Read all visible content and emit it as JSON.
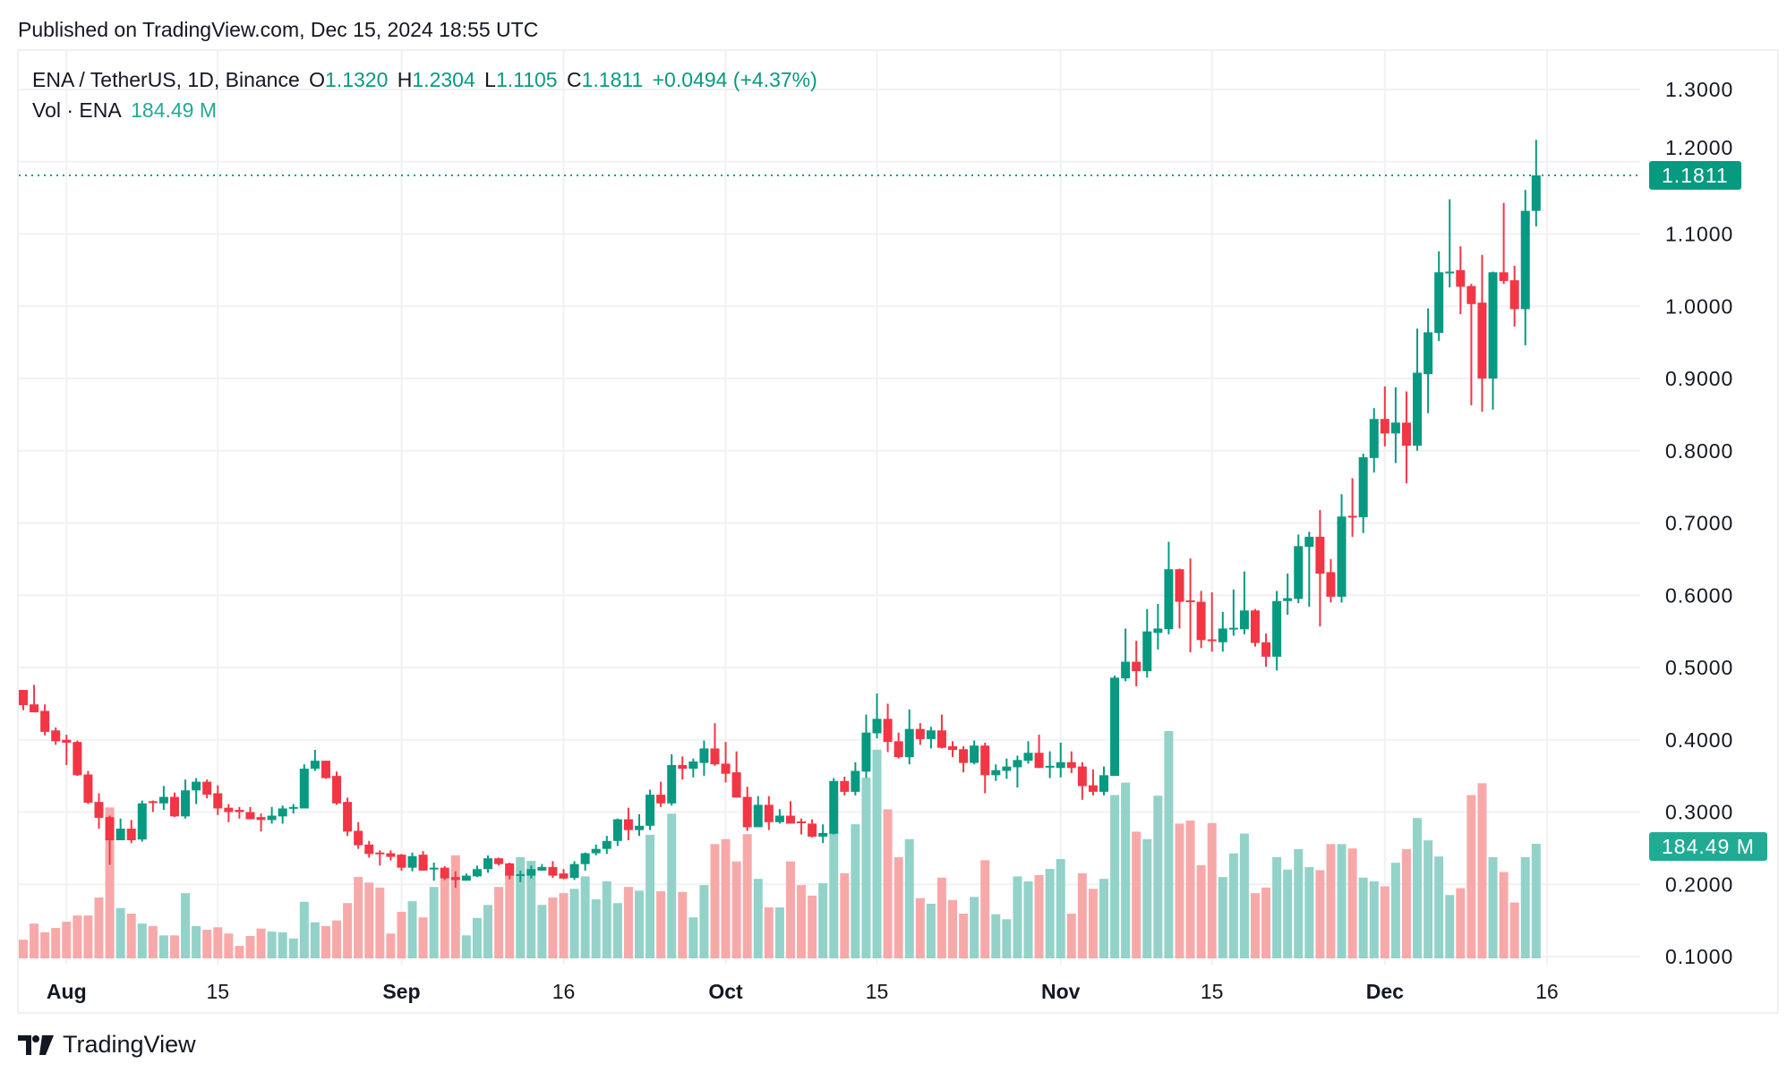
{
  "published": "Published on TradingView.com, Dec 15, 2024 18:55 UTC",
  "legend": {
    "symbol": "ENA / TetherUS, 1D, Binance",
    "o_label": "O",
    "o": "1.1320",
    "h_label": "H",
    "h": "1.2304",
    "l_label": "L",
    "l": "1.1105",
    "c_label": "C",
    "c": "1.1811",
    "change": "+0.0494 (+4.37%)",
    "vol_label": "Vol · ENA",
    "vol": "184.49 M"
  },
  "last_price_tag": "1.1811",
  "volume_tag": "184.49 M",
  "brand": "TradingView",
  "colors": {
    "up": "#089981",
    "down": "#F23645",
    "vol_up": "#93d2c9",
    "vol_down": "#f7a9a9",
    "grid": "#f0f1f3"
  },
  "chart_data": {
    "type": "candlestick",
    "title": "",
    "y_axis": {
      "position": "right",
      "range": [
        0.1,
        1.3
      ],
      "ticks": [
        "1.3000",
        "1.2000",
        "1.1000",
        "1.0000",
        "0.9000",
        "0.8000",
        "0.7000",
        "0.6000",
        "0.5000",
        "0.4000",
        "0.3000",
        "0.2000",
        "0.1000"
      ]
    },
    "x_axis": {
      "tick_labels": [
        {
          "date": "2024-08-01",
          "label": "Aug",
          "bold": true
        },
        {
          "date": "2024-08-15",
          "label": "15",
          "bold": false
        },
        {
          "date": "2024-09-01",
          "label": "Sep",
          "bold": true
        },
        {
          "date": "2024-09-16",
          "label": "16",
          "bold": false
        },
        {
          "date": "2024-10-01",
          "label": "Oct",
          "bold": true
        },
        {
          "date": "2024-10-15",
          "label": "15",
          "bold": false
        },
        {
          "date": "2024-11-01",
          "label": "Nov",
          "bold": true
        },
        {
          "date": "2024-11-15",
          "label": "15",
          "bold": false
        },
        {
          "date": "2024-12-01",
          "label": "Dec",
          "bold": true
        },
        {
          "date": "2024-12-16",
          "label": "16",
          "bold": false
        }
      ]
    },
    "grid": true,
    "volume_unit": "M",
    "columns": [
      "date",
      "open",
      "high",
      "low",
      "close",
      "volume"
    ],
    "candles": [
      [
        "2024-07-28",
        0.469,
        0.469,
        0.441,
        0.448,
        30
      ],
      [
        "2024-07-29",
        0.449,
        0.476,
        0.438,
        0.438,
        56
      ],
      [
        "2024-07-30",
        0.44,
        0.449,
        0.406,
        0.411,
        42
      ],
      [
        "2024-07-31",
        0.413,
        0.417,
        0.393,
        0.398,
        49
      ],
      [
        "2024-08-01",
        0.4,
        0.407,
        0.365,
        0.396,
        59
      ],
      [
        "2024-08-02",
        0.397,
        0.399,
        0.35,
        0.351,
        69
      ],
      [
        "2024-08-03",
        0.352,
        0.357,
        0.311,
        0.313,
        69
      ],
      [
        "2024-08-04",
        0.314,
        0.326,
        0.277,
        0.292,
        98
      ],
      [
        "2024-08-05",
        0.293,
        0.295,
        0.227,
        0.261,
        243
      ],
      [
        "2024-08-06",
        0.261,
        0.291,
        0.261,
        0.277,
        81
      ],
      [
        "2024-08-07",
        0.277,
        0.289,
        0.257,
        0.261,
        72
      ],
      [
        "2024-08-08",
        0.262,
        0.316,
        0.259,
        0.312,
        56
      ],
      [
        "2024-08-09",
        0.315,
        0.316,
        0.3,
        0.313,
        52
      ],
      [
        "2024-08-10",
        0.312,
        0.336,
        0.303,
        0.321,
        37
      ],
      [
        "2024-08-11",
        0.321,
        0.327,
        0.293,
        0.294,
        37
      ],
      [
        "2024-08-12",
        0.294,
        0.345,
        0.291,
        0.33,
        105
      ],
      [
        "2024-08-13",
        0.33,
        0.347,
        0.311,
        0.342,
        52
      ],
      [
        "2024-08-14",
        0.342,
        0.345,
        0.319,
        0.324,
        46
      ],
      [
        "2024-08-15",
        0.326,
        0.337,
        0.296,
        0.305,
        50
      ],
      [
        "2024-08-16",
        0.306,
        0.311,
        0.286,
        0.3,
        40
      ],
      [
        "2024-08-17",
        0.303,
        0.307,
        0.291,
        0.3,
        20
      ],
      [
        "2024-08-18",
        0.3,
        0.307,
        0.29,
        0.29,
        36
      ],
      [
        "2024-08-19",
        0.293,
        0.298,
        0.273,
        0.289,
        48
      ],
      [
        "2024-08-20",
        0.289,
        0.307,
        0.284,
        0.295,
        43
      ],
      [
        "2024-08-21",
        0.294,
        0.309,
        0.284,
        0.305,
        42
      ],
      [
        "2024-08-22",
        0.306,
        0.311,
        0.298,
        0.307,
        32
      ],
      [
        "2024-08-23",
        0.305,
        0.366,
        0.305,
        0.36,
        91
      ],
      [
        "2024-08-24",
        0.36,
        0.386,
        0.357,
        0.371,
        58
      ],
      [
        "2024-08-25",
        0.371,
        0.371,
        0.346,
        0.347,
        52
      ],
      [
        "2024-08-26",
        0.35,
        0.356,
        0.31,
        0.312,
        61
      ],
      [
        "2024-08-27",
        0.314,
        0.32,
        0.267,
        0.273,
        89
      ],
      [
        "2024-08-28",
        0.274,
        0.286,
        0.249,
        0.254,
        131
      ],
      [
        "2024-08-29",
        0.255,
        0.26,
        0.237,
        0.242,
        122
      ],
      [
        "2024-08-30",
        0.244,
        0.247,
        0.226,
        0.242,
        114
      ],
      [
        "2024-08-31",
        0.243,
        0.247,
        0.233,
        0.238,
        40
      ],
      [
        "2024-09-01",
        0.241,
        0.242,
        0.219,
        0.223,
        75
      ],
      [
        "2024-09-02",
        0.223,
        0.244,
        0.218,
        0.239,
        92
      ],
      [
        "2024-09-03",
        0.241,
        0.246,
        0.219,
        0.219,
        66
      ],
      [
        "2024-09-04",
        0.222,
        0.23,
        0.205,
        0.223,
        115
      ],
      [
        "2024-09-05",
        0.223,
        0.225,
        0.206,
        0.208,
        128
      ],
      [
        "2024-09-06",
        0.21,
        0.218,
        0.195,
        0.206,
        166
      ],
      [
        "2024-09-07",
        0.205,
        0.215,
        0.205,
        0.212,
        37
      ],
      [
        "2024-09-08",
        0.211,
        0.226,
        0.21,
        0.221,
        65
      ],
      [
        "2024-09-09",
        0.221,
        0.24,
        0.216,
        0.236,
        86
      ],
      [
        "2024-09-10",
        0.236,
        0.237,
        0.226,
        0.228,
        115
      ],
      [
        "2024-09-11",
        0.229,
        0.23,
        0.207,
        0.212,
        137
      ],
      [
        "2024-09-12",
        0.213,
        0.219,
        0.203,
        0.214,
        163
      ],
      [
        "2024-09-13",
        0.212,
        0.226,
        0.208,
        0.221,
        157
      ],
      [
        "2024-09-14",
        0.219,
        0.228,
        0.219,
        0.224,
        86
      ],
      [
        "2024-09-15",
        0.224,
        0.232,
        0.209,
        0.212,
        98
      ],
      [
        "2024-09-16",
        0.215,
        0.221,
        0.207,
        0.208,
        105
      ],
      [
        "2024-09-17",
        0.209,
        0.232,
        0.206,
        0.228,
        112
      ],
      [
        "2024-09-18",
        0.228,
        0.244,
        0.219,
        0.243,
        132
      ],
      [
        "2024-09-19",
        0.243,
        0.255,
        0.24,
        0.249,
        95
      ],
      [
        "2024-09-20",
        0.249,
        0.267,
        0.242,
        0.26,
        124
      ],
      [
        "2024-09-21",
        0.26,
        0.291,
        0.253,
        0.29,
        89
      ],
      [
        "2024-09-22",
        0.29,
        0.306,
        0.261,
        0.275,
        115
      ],
      [
        "2024-09-23",
        0.275,
        0.297,
        0.267,
        0.281,
        109
      ],
      [
        "2024-09-24",
        0.281,
        0.331,
        0.275,
        0.324,
        199
      ],
      [
        "2024-09-25",
        0.324,
        0.342,
        0.307,
        0.312,
        108
      ],
      [
        "2024-09-26",
        0.312,
        0.38,
        0.309,
        0.365,
        233
      ],
      [
        "2024-09-27",
        0.365,
        0.377,
        0.345,
        0.36,
        107
      ],
      [
        "2024-09-28",
        0.36,
        0.374,
        0.348,
        0.37,
        66
      ],
      [
        "2024-09-29",
        0.368,
        0.399,
        0.35,
        0.388,
        118
      ],
      [
        "2024-09-30",
        0.388,
        0.423,
        0.364,
        0.366,
        184
      ],
      [
        "2024-10-01",
        0.367,
        0.397,
        0.341,
        0.353,
        192
      ],
      [
        "2024-10-02",
        0.355,
        0.384,
        0.32,
        0.32,
        156
      ],
      [
        "2024-10-03",
        0.321,
        0.335,
        0.274,
        0.279,
        200
      ],
      [
        "2024-10-04",
        0.279,
        0.322,
        0.279,
        0.31,
        128
      ],
      [
        "2024-10-05",
        0.31,
        0.322,
        0.275,
        0.286,
        82
      ],
      [
        "2024-10-06",
        0.286,
        0.304,
        0.284,
        0.295,
        82
      ],
      [
        "2024-10-07",
        0.295,
        0.315,
        0.284,
        0.284,
        156
      ],
      [
        "2024-10-08",
        0.287,
        0.291,
        0.269,
        0.285,
        118
      ],
      [
        "2024-10-09",
        0.284,
        0.29,
        0.265,
        0.266,
        101
      ],
      [
        "2024-10-10",
        0.266,
        0.283,
        0.257,
        0.271,
        121
      ],
      [
        "2024-10-11",
        0.27,
        0.347,
        0.269,
        0.343,
        206
      ],
      [
        "2024-10-12",
        0.343,
        0.349,
        0.323,
        0.328,
        137
      ],
      [
        "2024-10-13",
        0.328,
        0.369,
        0.323,
        0.357,
        216
      ],
      [
        "2024-10-14",
        0.356,
        0.435,
        0.347,
        0.41,
        291
      ],
      [
        "2024-10-15",
        0.409,
        0.464,
        0.402,
        0.429,
        336
      ],
      [
        "2024-10-16",
        0.429,
        0.45,
        0.383,
        0.397,
        240
      ],
      [
        "2024-10-17",
        0.398,
        0.41,
        0.374,
        0.376,
        163
      ],
      [
        "2024-10-18",
        0.376,
        0.442,
        0.366,
        0.415,
        192
      ],
      [
        "2024-10-19",
        0.415,
        0.423,
        0.393,
        0.401,
        97
      ],
      [
        "2024-10-20",
        0.401,
        0.418,
        0.388,
        0.413,
        88
      ],
      [
        "2024-10-21",
        0.413,
        0.435,
        0.388,
        0.389,
        130
      ],
      [
        "2024-10-22",
        0.391,
        0.398,
        0.376,
        0.386,
        94
      ],
      [
        "2024-10-23",
        0.387,
        0.391,
        0.355,
        0.368,
        72
      ],
      [
        "2024-10-24",
        0.368,
        0.399,
        0.366,
        0.392,
        99
      ],
      [
        "2024-10-25",
        0.392,
        0.396,
        0.326,
        0.351,
        158
      ],
      [
        "2024-10-26",
        0.351,
        0.366,
        0.343,
        0.358,
        71
      ],
      [
        "2024-10-27",
        0.357,
        0.374,
        0.346,
        0.363,
        63
      ],
      [
        "2024-10-28",
        0.362,
        0.378,
        0.334,
        0.372,
        132
      ],
      [
        "2024-10-29",
        0.371,
        0.398,
        0.367,
        0.382,
        124
      ],
      [
        "2024-10-30",
        0.382,
        0.407,
        0.361,
        0.361,
        134
      ],
      [
        "2024-10-31",
        0.362,
        0.384,
        0.347,
        0.364,
        144
      ],
      [
        "2024-11-01",
        0.361,
        0.396,
        0.348,
        0.369,
        160
      ],
      [
        "2024-11-02",
        0.369,
        0.384,
        0.354,
        0.361,
        72
      ],
      [
        "2024-11-03",
        0.363,
        0.369,
        0.317,
        0.336,
        137
      ],
      [
        "2024-11-04",
        0.337,
        0.359,
        0.323,
        0.328,
        112
      ],
      [
        "2024-11-05",
        0.328,
        0.363,
        0.323,
        0.351,
        128
      ],
      [
        "2024-11-06",
        0.35,
        0.489,
        0.35,
        0.486,
        263
      ],
      [
        "2024-11-07",
        0.485,
        0.554,
        0.481,
        0.508,
        283
      ],
      [
        "2024-11-08",
        0.508,
        0.537,
        0.474,
        0.495,
        204
      ],
      [
        "2024-11-09",
        0.495,
        0.581,
        0.486,
        0.55,
        192
      ],
      [
        "2024-11-10",
        0.548,
        0.588,
        0.525,
        0.554,
        262
      ],
      [
        "2024-11-11",
        0.553,
        0.674,
        0.546,
        0.636,
        366
      ],
      [
        "2024-11-12",
        0.636,
        0.637,
        0.554,
        0.591,
        217
      ],
      [
        "2024-11-13",
        0.593,
        0.651,
        0.521,
        0.591,
        222
      ],
      [
        "2024-11-14",
        0.591,
        0.606,
        0.527,
        0.538,
        150
      ],
      [
        "2024-11-15",
        0.539,
        0.604,
        0.522,
        0.538,
        218
      ],
      [
        "2024-11-16",
        0.535,
        0.577,
        0.522,
        0.554,
        131
      ],
      [
        "2024-11-17",
        0.554,
        0.608,
        0.544,
        0.555,
        169
      ],
      [
        "2024-11-18",
        0.553,
        0.633,
        0.546,
        0.579,
        201
      ],
      [
        "2024-11-19",
        0.579,
        0.581,
        0.529,
        0.534,
        105
      ],
      [
        "2024-11-20",
        0.535,
        0.547,
        0.501,
        0.515,
        114
      ],
      [
        "2024-11-21",
        0.515,
        0.606,
        0.496,
        0.592,
        163
      ],
      [
        "2024-11-22",
        0.592,
        0.63,
        0.573,
        0.596,
        143
      ],
      [
        "2024-11-23",
        0.595,
        0.684,
        0.589,
        0.668,
        176
      ],
      [
        "2024-11-24",
        0.667,
        0.688,
        0.584,
        0.681,
        147
      ],
      [
        "2024-11-25",
        0.681,
        0.718,
        0.557,
        0.63,
        142
      ],
      [
        "2024-11-26",
        0.632,
        0.65,
        0.59,
        0.598,
        184
      ],
      [
        "2024-11-27",
        0.598,
        0.74,
        0.59,
        0.709,
        184
      ],
      [
        "2024-11-28",
        0.71,
        0.762,
        0.681,
        0.708,
        177
      ],
      [
        "2024-11-29",
        0.708,
        0.796,
        0.686,
        0.791,
        130
      ],
      [
        "2024-11-30",
        0.79,
        0.859,
        0.77,
        0.844,
        124
      ],
      [
        "2024-12-01",
        0.844,
        0.889,
        0.806,
        0.824,
        116
      ],
      [
        "2024-12-02",
        0.824,
        0.888,
        0.783,
        0.839,
        154
      ],
      [
        "2024-12-03",
        0.839,
        0.882,
        0.755,
        0.807,
        176
      ],
      [
        "2024-12-04",
        0.807,
        0.969,
        0.8,
        0.908,
        226
      ],
      [
        "2024-12-05",
        0.906,
        0.997,
        0.852,
        0.964,
        190
      ],
      [
        "2024-12-06",
        0.963,
        1.076,
        0.952,
        1.047,
        164
      ],
      [
        "2024-12-07",
        1.047,
        1.148,
        1.026,
        1.048,
        102
      ],
      [
        "2024-12-08",
        1.05,
        1.083,
        0.989,
        1.027,
        113
      ],
      [
        "2024-12-09",
        1.028,
        1.031,
        0.863,
        1.003,
        263
      ],
      [
        "2024-12-10",
        1.005,
        1.071,
        0.854,
        0.9,
        282
      ],
      [
        "2024-12-11",
        0.9,
        1.048,
        0.857,
        1.047,
        163
      ],
      [
        "2024-12-12",
        1.047,
        1.143,
        1.031,
        1.035,
        139
      ],
      [
        "2024-12-13",
        1.036,
        1.056,
        0.972,
        0.996,
        90
      ],
      [
        "2024-12-14",
        0.996,
        1.161,
        0.946,
        1.132,
        163
      ],
      [
        "2024-12-15",
        1.132,
        1.2304,
        1.1105,
        1.1811,
        184.49
      ]
    ]
  }
}
